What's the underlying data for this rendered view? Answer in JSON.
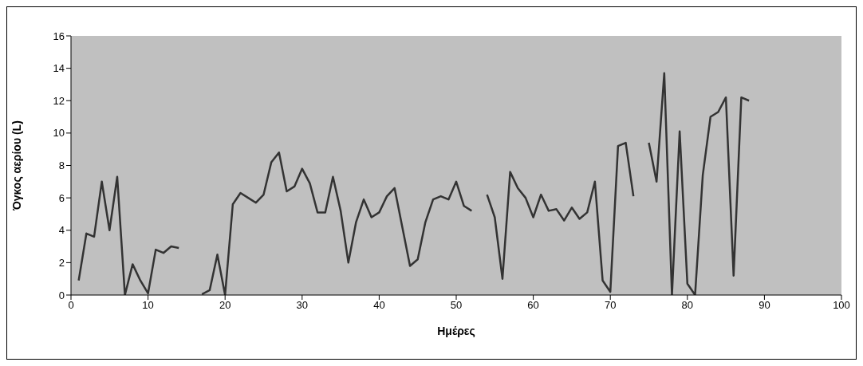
{
  "chart_data": {
    "type": "line",
    "xlabel": "Ημέρες",
    "ylabel": "Όγκος αερίου (L)",
    "x": [
      1,
      2,
      3,
      4,
      5,
      6,
      7,
      8,
      9,
      10,
      11,
      12,
      13,
      14,
      15,
      16,
      17,
      18,
      19,
      20,
      21,
      22,
      23,
      24,
      25,
      26,
      27,
      28,
      29,
      30,
      31,
      32,
      33,
      34,
      35,
      36,
      37,
      38,
      39,
      40,
      41,
      42,
      43,
      44,
      45,
      46,
      47,
      48,
      49,
      50,
      51,
      52,
      53,
      54,
      55,
      56,
      57,
      58,
      59,
      60,
      61,
      62,
      63,
      64,
      65,
      66,
      67,
      68,
      69,
      70,
      71,
      72,
      73,
      74,
      75,
      76,
      77,
      78,
      79,
      80,
      81,
      82,
      83,
      84,
      85,
      86,
      87,
      88
    ],
    "series": [
      {
        "color": "#333333",
        "values": [
          0.9,
          3.8,
          3.6,
          7.0,
          4.0,
          7.3,
          0,
          1.9,
          0.9,
          0.1,
          2.8,
          2.6,
          3.0,
          2.9,
          null,
          null,
          0.05,
          0.3,
          2.5,
          0,
          5.6,
          6.3,
          6.0,
          5.7,
          6.2,
          8.2,
          8.8,
          6.4,
          6.7,
          7.8,
          6.9,
          5.1,
          5.1,
          7.3,
          5.2,
          2.0,
          4.5,
          5.9,
          4.8,
          5.1,
          6.1,
          6.6,
          4.2,
          1.8,
          2.2,
          4.5,
          5.9,
          6.1,
          5.9,
          7.0,
          5.5,
          5.2,
          null,
          6.2,
          4.8,
          1.0,
          7.6,
          6.6,
          6.0,
          4.8,
          6.2,
          5.2,
          5.3,
          4.6,
          5.4,
          4.7,
          5.1,
          7.0,
          0.9,
          0.2,
          9.2,
          9.4,
          6.1,
          null,
          9.4,
          7.0,
          13.7,
          0,
          10.1,
          0.7,
          0,
          7.4,
          11.0,
          11.3,
          12.2,
          1.2,
          12.2,
          12.0
        ]
      }
    ],
    "xlim": [
      0,
      100
    ],
    "xticks": [
      0,
      10,
      20,
      30,
      40,
      50,
      60,
      70,
      80,
      90,
      100
    ],
    "ylim": [
      0,
      16
    ],
    "yticks": [
      0,
      2,
      4,
      6,
      8,
      10,
      12,
      14,
      16
    ],
    "grid": false,
    "legend": false,
    "marker": "none",
    "line_style": "solid"
  }
}
